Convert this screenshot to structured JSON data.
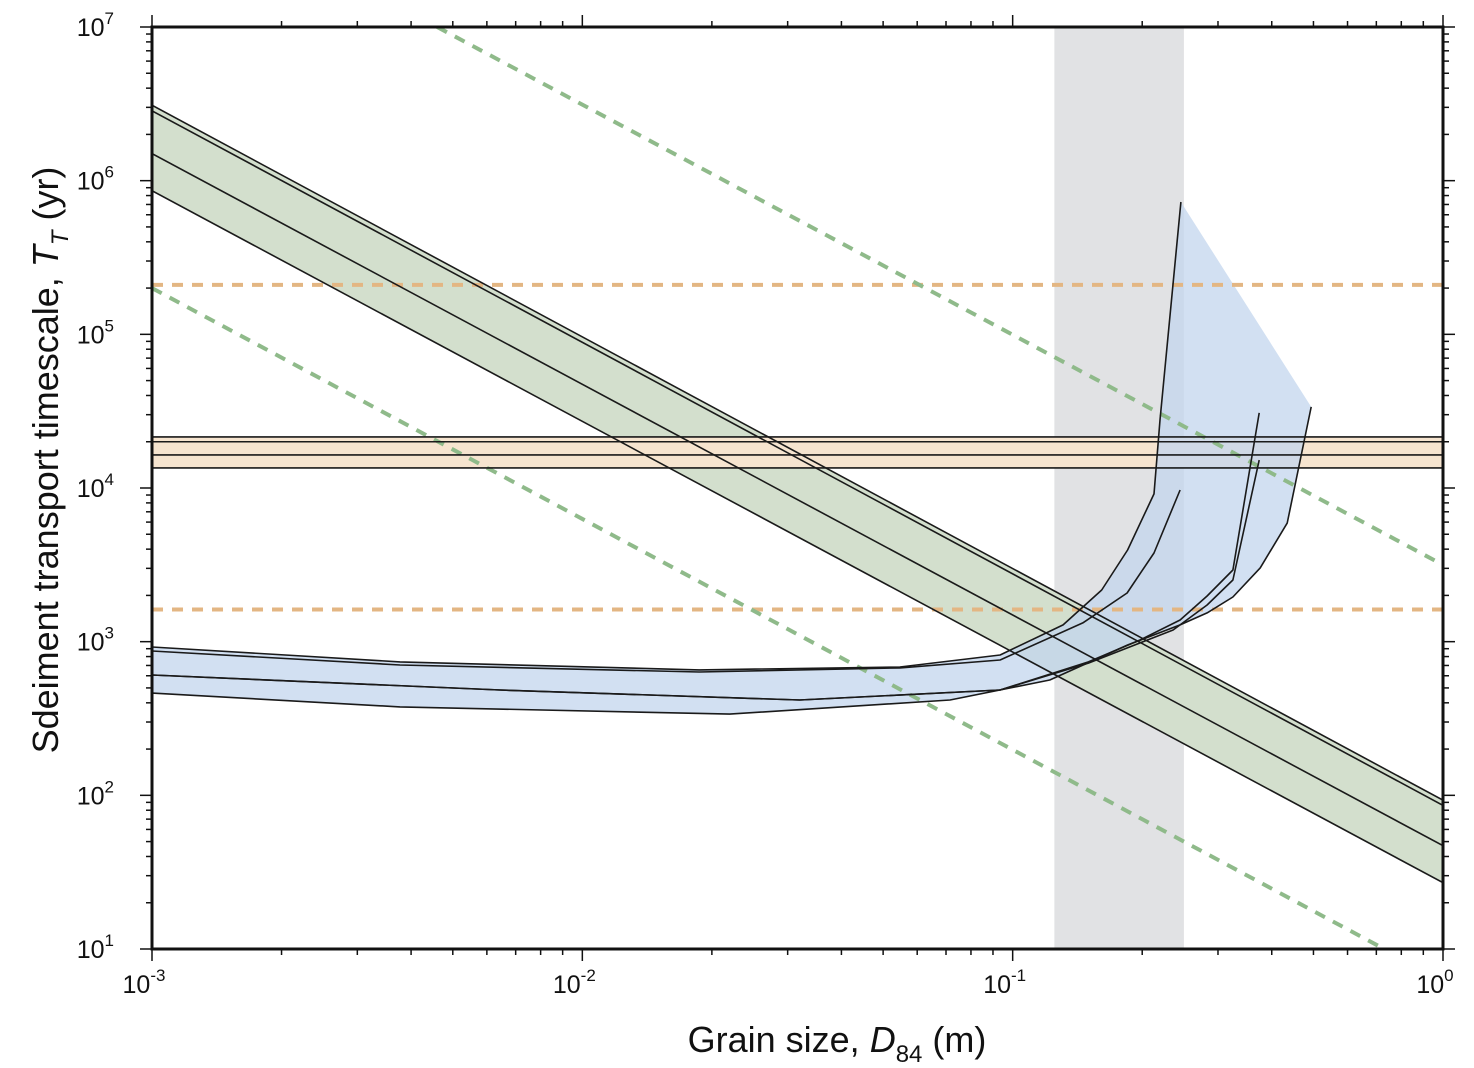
{
  "chart_data": {
    "type": "line",
    "title": "",
    "xlabel": {
      "prefix": "Grain size, ",
      "var": "D",
      "sub": "84",
      "suffix": " (m)"
    },
    "ylabel": {
      "prefix": "Sdeiment transport timescale, ",
      "var": "T",
      "sub": "T",
      "suffix": " (yr)"
    },
    "xscale": "log",
    "yscale": "log",
    "xlim": [
      0.001,
      1
    ],
    "ylim": [
      10,
      10000000
    ],
    "xticks": [
      {
        "base": "10",
        "exp": "-3",
        "value": 0.001
      },
      {
        "base": "10",
        "exp": "-2",
        "value": 0.01
      },
      {
        "base": "10",
        "exp": "-1",
        "value": 0.1
      },
      {
        "base": "10",
        "exp": "0",
        "value": 1
      }
    ],
    "yticks": [
      {
        "base": "10",
        "exp": "1",
        "value": 10
      },
      {
        "base": "10",
        "exp": "2",
        "value": 100
      },
      {
        "base": "10",
        "exp": "3",
        "value": 1000
      },
      {
        "base": "10",
        "exp": "4",
        "value": 10000
      },
      {
        "base": "10",
        "exp": "5",
        "value": 100000
      },
      {
        "base": "10",
        "exp": "6",
        "value": 1000000
      },
      {
        "base": "10",
        "exp": "7",
        "value": 10000000
      }
    ],
    "grid": false,
    "colors": {
      "grey_band": "#e1e2e4",
      "green_band": "#d3dfcd",
      "orange_band": "#f6e4cf",
      "blue_band": "#c3d5ee",
      "green_dash": "#8fba8a",
      "orange_dash": "#e3b683",
      "line": "#1a1a1a"
    },
    "grey_band_x": [
      0.125,
      0.25
    ],
    "orange_band": {
      "y_range": [
        13500,
        21500
      ],
      "lines": [
        21500,
        20000,
        16400,
        13500
      ]
    },
    "orange_dashed": [
      210000,
      1620
    ],
    "green_band": {
      "lines": [
        {
          "name": "upper",
          "x": [
            0.001,
            1
          ],
          "y": [
            3100000,
            93
          ]
        },
        {
          "name": "upper-2",
          "x": [
            0.001,
            1
          ],
          "y": [
            2850000,
            86
          ]
        },
        {
          "name": "middle",
          "x": [
            0.001,
            1
          ],
          "y": [
            1500000,
            47
          ]
        },
        {
          "name": "lower",
          "x": [
            0.001,
            1
          ],
          "y": [
            860000,
            27
          ]
        }
      ]
    },
    "green_dashed": [
      {
        "x": [
          0.0046,
          1
        ],
        "y": [
          10000000,
          3160
        ]
      },
      {
        "x": [
          0.001,
          0.73
        ],
        "y": [
          200000,
          10
        ]
      }
    ],
    "blue_curves": [
      {
        "name": "A",
        "x": [
          0.001,
          0.00377,
          0.0187,
          0.0547,
          0.0935,
          0.131,
          0.161,
          0.185,
          0.213,
          0.22,
          0.246
        ],
        "y": [
          923,
          738,
          655,
          684,
          819,
          1285,
          2170,
          3950,
          9150,
          27700,
          726000
        ]
      },
      {
        "name": "B",
        "x": [
          0.001,
          0.00377,
          0.0187,
          0.0547,
          0.0935,
          0.1455,
          0.1845,
          0.213,
          0.245
        ],
        "y": [
          869,
          705,
          635,
          675,
          760,
          1324,
          2075,
          3776,
          9700
        ]
      },
      {
        "name": "C",
        "x": [
          0.001,
          0.00644,
          0.032,
          0.0935,
          0.15,
          0.1977,
          0.245,
          0.283,
          0.325,
          0.374
        ],
        "y": [
          607,
          485,
          417,
          485,
          738,
          1026,
          1383,
          1982,
          2925,
          30800
        ]
      },
      {
        "name": "D",
        "x": [
          0.001,
          0.00644,
          0.032,
          0.0935,
          0.15,
          0.236,
          0.283,
          0.325,
          0.374
        ],
        "y": [
          607,
          485,
          417,
          485,
          725,
          1191,
          1733,
          2520,
          15200
        ]
      },
      {
        "name": "E",
        "x": [
          0.001,
          0.00377,
          0.022,
          0.0715,
          0.122,
          0.185,
          0.245,
          0.283,
          0.325,
          0.376,
          0.4345,
          0.494
        ],
        "y": [
          463,
          376,
          338,
          417,
          563,
          951,
          1285,
          1538,
          1954,
          3020,
          5910,
          33700
        ]
      }
    ]
  }
}
